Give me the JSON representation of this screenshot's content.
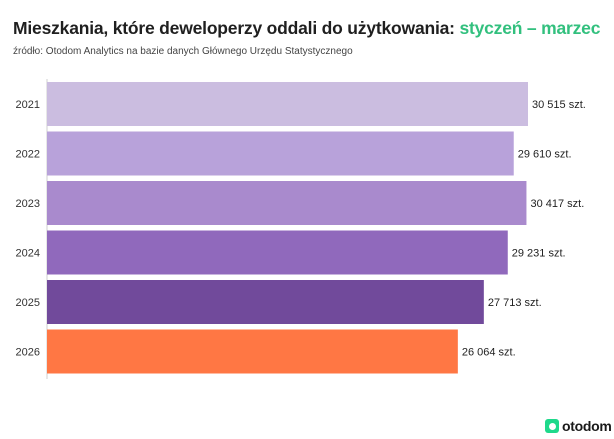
{
  "header": {
    "title_main": "Mieszkania, które deweloperzy oddali do użytkowania: ",
    "title_accent": "styczeń – marzec",
    "source": "źródło: Otodom Analytics na bazie danych Głównego Urzędu Statystycznego"
  },
  "brand": {
    "logo_text": "otodom",
    "logo_color": "#1ed98b"
  },
  "chart_data": {
    "type": "bar",
    "orientation": "horizontal",
    "categories": [
      "2021",
      "2022",
      "2023",
      "2024",
      "2025",
      "2026"
    ],
    "values": [
      30515,
      29610,
      30417,
      29231,
      27713,
      26064
    ],
    "value_labels": [
      "30 515 szt.",
      "29 610 szt.",
      "30 417 szt.",
      "29 231 szt.",
      "27 713 szt.",
      "26 064 szt."
    ],
    "colors": [
      "#cbbde0",
      "#b8a2da",
      "#a98acd",
      "#9069bc",
      "#714a9b",
      "#ff7744"
    ],
    "title": "Mieszkania, które deweloperzy oddali do użytkowania: styczeń – marzec",
    "xlabel": "",
    "ylabel": "",
    "xlim": [
      0,
      30515
    ],
    "grid": false,
    "legend": "none"
  }
}
